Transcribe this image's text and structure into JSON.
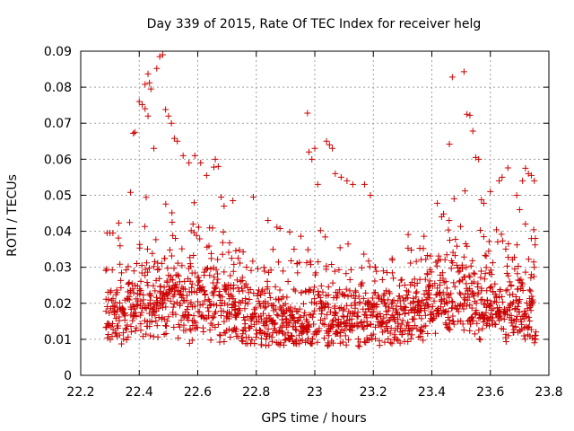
{
  "chart_data": {
    "type": "scatter",
    "title": "Day 339 of 2015, Rate Of TEC Index for receiver helg",
    "xlabel": "GPS time / hours",
    "ylabel": "ROTI / TECUs",
    "xlim": [
      22.2,
      23.8
    ],
    "ylim": [
      0,
      0.09
    ],
    "x_ticks": [
      22.2,
      22.4,
      22.6,
      22.8,
      23.0,
      23.2,
      23.4,
      23.6,
      23.8
    ],
    "x_tick_labels": [
      "22.2",
      "22.4",
      "22.6",
      "22.8",
      "23",
      "23.2",
      "23.4",
      "23.6",
      "23.8"
    ],
    "y_ticks": [
      0,
      0.01,
      0.02,
      0.03,
      0.04,
      0.05,
      0.06,
      0.07,
      0.08,
      0.09
    ],
    "y_tick_labels": [
      "0",
      "0.01",
      "0.02",
      "0.03",
      "0.04",
      "0.05",
      "0.06",
      "0.07",
      "0.08",
      "0.09"
    ],
    "grid": true,
    "marker": "+",
    "color": "#cc0000",
    "series": [
      {
        "points": [
          [
            22.29,
            0.0395
          ],
          [
            22.3,
            0.0395
          ],
          [
            22.31,
            0.0395
          ],
          [
            22.37,
            0.0508
          ],
          [
            22.38,
            0.0672
          ],
          [
            22.385,
            0.0675
          ],
          [
            22.4,
            0.076
          ],
          [
            22.41,
            0.0752
          ],
          [
            22.42,
            0.0808
          ],
          [
            22.43,
            0.0837
          ],
          [
            22.435,
            0.0812
          ],
          [
            22.44,
            0.0795
          ],
          [
            22.42,
            0.074
          ],
          [
            22.43,
            0.072
          ],
          [
            22.45,
            0.063
          ],
          [
            22.46,
            0.0852
          ],
          [
            22.47,
            0.0885
          ],
          [
            22.48,
            0.089
          ],
          [
            22.49,
            0.0738
          ],
          [
            22.5,
            0.072
          ],
          [
            22.51,
            0.07
          ],
          [
            22.52,
            0.0658
          ],
          [
            22.53,
            0.065
          ],
          [
            22.55,
            0.061
          ],
          [
            22.57,
            0.059
          ],
          [
            22.59,
            0.061
          ],
          [
            22.61,
            0.059
          ],
          [
            22.63,
            0.0555
          ],
          [
            22.655,
            0.0578
          ],
          [
            22.66,
            0.06
          ],
          [
            22.67,
            0.058
          ],
          [
            22.68,
            0.0495
          ],
          [
            22.69,
            0.047
          ],
          [
            22.72,
            0.0485
          ],
          [
            22.79,
            0.0495
          ],
          [
            22.84,
            0.043
          ],
          [
            22.975,
            0.0728
          ],
          [
            22.98,
            0.062
          ],
          [
            22.99,
            0.06
          ],
          [
            23.0,
            0.063
          ],
          [
            23.01,
            0.053
          ],
          [
            23.04,
            0.065
          ],
          [
            23.05,
            0.064
          ],
          [
            23.06,
            0.063
          ],
          [
            23.07,
            0.056
          ],
          [
            23.09,
            0.055
          ],
          [
            23.11,
            0.054
          ],
          [
            23.13,
            0.053
          ],
          [
            23.17,
            0.053
          ],
          [
            23.19,
            0.05
          ],
          [
            23.44,
            0.0448
          ],
          [
            23.46,
            0.0642
          ],
          [
            23.47,
            0.0828
          ],
          [
            23.51,
            0.0843
          ],
          [
            23.52,
            0.0725
          ],
          [
            23.53,
            0.0722
          ],
          [
            23.54,
            0.0678
          ],
          [
            23.55,
            0.0605
          ],
          [
            23.56,
            0.06
          ],
          [
            23.6,
            0.051
          ],
          [
            23.63,
            0.054
          ],
          [
            23.64,
            0.055
          ],
          [
            23.66,
            0.0576
          ],
          [
            23.69,
            0.05
          ],
          [
            23.71,
            0.054
          ],
          [
            23.72,
            0.0575
          ],
          [
            23.73,
            0.056
          ],
          [
            23.74,
            0.0555
          ],
          [
            23.75,
            0.054
          ],
          [
            23.7,
            0.046
          ],
          [
            23.72,
            0.042
          ],
          [
            23.74,
            0.038
          ],
          [
            23.75,
            0.03
          ],
          [
            23.74,
            0.028
          ]
        ]
      }
    ]
  }
}
